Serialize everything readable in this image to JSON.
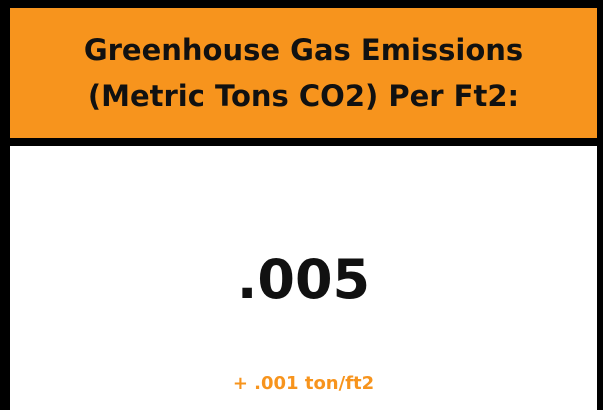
{
  "header": {
    "title_lines": [
      "Greenhouse Gas Emissions",
      "(Metric Tons CO2) Per Ft2:"
    ]
  },
  "metric": {
    "value": ".005",
    "change": "+ .001 ton/ft2"
  }
}
